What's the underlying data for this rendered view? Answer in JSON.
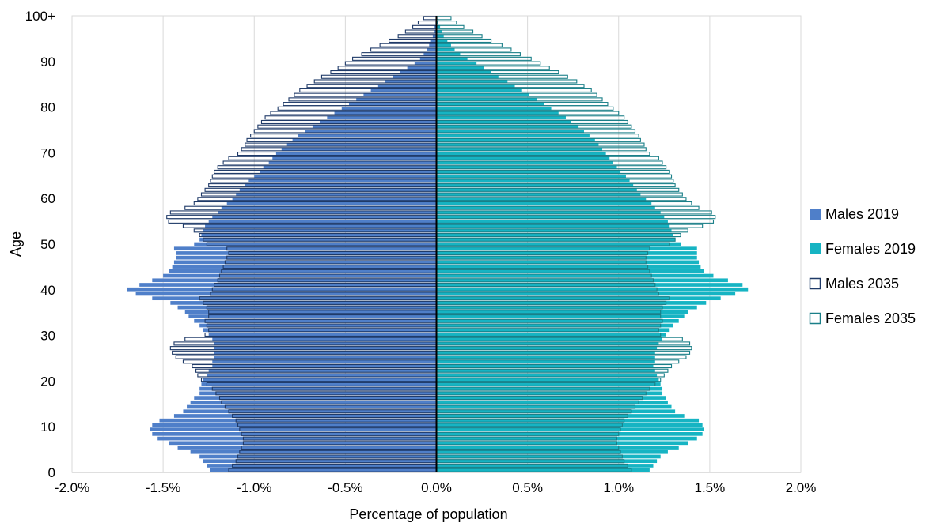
{
  "chart_data": {
    "type": "bar",
    "orientation": "horizontal-population-pyramid",
    "title": "",
    "xlabel": "Percentage of population",
    "ylabel": "Age",
    "xlim": [
      -2.0,
      2.0
    ],
    "ylim": [
      0,
      100
    ],
    "x_ticks": [
      -2.0,
      -1.5,
      -1.0,
      -0.5,
      0.0,
      0.5,
      1.0,
      1.5,
      2.0
    ],
    "x_tick_labels": [
      "-2.0%",
      "-1.5%",
      "-1.0%",
      "-0.5%",
      "0.0%",
      "0.5%",
      "1.0%",
      "1.5%",
      "2.0%"
    ],
    "y_ticks": [
      0,
      10,
      20,
      30,
      40,
      50,
      60,
      70,
      80,
      90,
      100
    ],
    "y_tick_labels": [
      "0",
      "10",
      "20",
      "30",
      "40",
      "50",
      "60",
      "70",
      "80",
      "90",
      "100+"
    ],
    "grid": "vertical",
    "legend_position": "right",
    "ages": [
      0,
      1,
      2,
      3,
      4,
      5,
      6,
      7,
      8,
      9,
      10,
      11,
      12,
      13,
      14,
      15,
      16,
      17,
      18,
      19,
      20,
      21,
      22,
      23,
      24,
      25,
      26,
      27,
      28,
      29,
      30,
      31,
      32,
      33,
      34,
      35,
      36,
      37,
      38,
      39,
      40,
      41,
      42,
      43,
      44,
      45,
      46,
      47,
      48,
      49,
      50,
      51,
      52,
      53,
      54,
      55,
      56,
      57,
      58,
      59,
      60,
      61,
      62,
      63,
      64,
      65,
      66,
      67,
      68,
      69,
      70,
      71,
      72,
      73,
      74,
      75,
      76,
      77,
      78,
      79,
      80,
      81,
      82,
      83,
      84,
      85,
      86,
      87,
      88,
      89,
      90,
      91,
      92,
      93,
      94,
      95,
      96,
      97,
      98,
      99,
      100
    ],
    "series": [
      {
        "name": "Males 2019",
        "style": "filled",
        "color": "#4F7FC9",
        "values": [
          -1.24,
          -1.26,
          -1.28,
          -1.3,
          -1.35,
          -1.42,
          -1.47,
          -1.53,
          -1.56,
          -1.57,
          -1.56,
          -1.52,
          -1.44,
          -1.39,
          -1.37,
          -1.35,
          -1.33,
          -1.3,
          -1.3,
          -1.29,
          -1.28,
          -1.26,
          -1.25,
          -1.23,
          -1.23,
          -1.22,
          -1.22,
          -1.22,
          -1.22,
          -1.23,
          -1.25,
          -1.28,
          -1.3,
          -1.33,
          -1.36,
          -1.38,
          -1.42,
          -1.46,
          -1.56,
          -1.65,
          -1.7,
          -1.63,
          -1.56,
          -1.5,
          -1.47,
          -1.45,
          -1.44,
          -1.43,
          -1.43,
          -1.44,
          -1.33,
          -1.3,
          -1.29,
          -1.28,
          -1.27,
          -1.25,
          -1.23,
          -1.2,
          -1.18,
          -1.15,
          -1.12,
          -1.1,
          -1.08,
          -1.05,
          -1.03,
          -1.0,
          -0.97,
          -0.95,
          -0.92,
          -0.9,
          -0.88,
          -0.85,
          -0.82,
          -0.79,
          -0.76,
          -0.72,
          -0.68,
          -0.64,
          -0.6,
          -0.56,
          -0.52,
          -0.48,
          -0.44,
          -0.4,
          -0.36,
          -0.32,
          -0.28,
          -0.24,
          -0.2,
          -0.16,
          -0.12,
          -0.09,
          -0.07,
          -0.05,
          -0.04,
          -0.03,
          -0.02,
          -0.01,
          -0.01,
          -0.005,
          -0.003
        ]
      },
      {
        "name": "Females 2019",
        "style": "filled",
        "color": "#16B4C3",
        "values": [
          1.17,
          1.19,
          1.21,
          1.23,
          1.27,
          1.33,
          1.38,
          1.43,
          1.46,
          1.47,
          1.46,
          1.44,
          1.36,
          1.31,
          1.29,
          1.27,
          1.26,
          1.24,
          1.24,
          1.23,
          1.22,
          1.21,
          1.2,
          1.19,
          1.2,
          1.2,
          1.2,
          1.21,
          1.22,
          1.24,
          1.26,
          1.28,
          1.3,
          1.33,
          1.36,
          1.38,
          1.43,
          1.48,
          1.56,
          1.64,
          1.71,
          1.68,
          1.6,
          1.52,
          1.47,
          1.45,
          1.44,
          1.43,
          1.43,
          1.43,
          1.34,
          1.31,
          1.3,
          1.29,
          1.28,
          1.27,
          1.25,
          1.23,
          1.2,
          1.18,
          1.15,
          1.12,
          1.1,
          1.08,
          1.06,
          1.04,
          1.01,
          0.99,
          0.97,
          0.95,
          0.93,
          0.91,
          0.89,
          0.87,
          0.84,
          0.81,
          0.78,
          0.74,
          0.71,
          0.67,
          0.63,
          0.59,
          0.55,
          0.51,
          0.47,
          0.43,
          0.39,
          0.34,
          0.3,
          0.26,
          0.22,
          0.17,
          0.13,
          0.1,
          0.08,
          0.06,
          0.04,
          0.03,
          0.02,
          0.01,
          0.005
        ]
      },
      {
        "name": "Males 2035",
        "style": "outline",
        "color": "#1F3A68",
        "values": [
          -1.14,
          -1.12,
          -1.1,
          -1.09,
          -1.08,
          -1.07,
          -1.06,
          -1.06,
          -1.07,
          -1.08,
          -1.09,
          -1.1,
          -1.12,
          -1.14,
          -1.16,
          -1.18,
          -1.19,
          -1.21,
          -1.23,
          -1.26,
          -1.29,
          -1.31,
          -1.32,
          -1.34,
          -1.39,
          -1.43,
          -1.45,
          -1.46,
          -1.44,
          -1.38,
          -1.27,
          -1.25,
          -1.26,
          -1.27,
          -1.25,
          -1.25,
          -1.26,
          -1.28,
          -1.3,
          -1.24,
          -1.23,
          -1.22,
          -1.2,
          -1.19,
          -1.18,
          -1.17,
          -1.16,
          -1.15,
          -1.14,
          -1.15,
          -1.26,
          -1.28,
          -1.3,
          -1.33,
          -1.39,
          -1.47,
          -1.48,
          -1.46,
          -1.38,
          -1.33,
          -1.31,
          -1.29,
          -1.27,
          -1.25,
          -1.24,
          -1.23,
          -1.22,
          -1.2,
          -1.17,
          -1.14,
          -1.09,
          -1.07,
          -1.05,
          -1.04,
          -1.02,
          -1.0,
          -0.98,
          -0.96,
          -0.94,
          -0.91,
          -0.87,
          -0.84,
          -0.81,
          -0.78,
          -0.75,
          -0.71,
          -0.67,
          -0.63,
          -0.58,
          -0.54,
          -0.5,
          -0.46,
          -0.41,
          -0.36,
          -0.31,
          -0.26,
          -0.21,
          -0.17,
          -0.13,
          -0.1,
          -0.07
        ]
      },
      {
        "name": "Females 2035",
        "style": "outline",
        "color": "#1A7F88",
        "values": [
          1.07,
          1.05,
          1.03,
          1.02,
          1.01,
          1.0,
          0.99,
          0.99,
          1.0,
          1.01,
          1.02,
          1.03,
          1.05,
          1.07,
          1.09,
          1.11,
          1.13,
          1.15,
          1.17,
          1.2,
          1.23,
          1.25,
          1.27,
          1.29,
          1.33,
          1.37,
          1.39,
          1.4,
          1.39,
          1.35,
          1.23,
          1.22,
          1.23,
          1.24,
          1.23,
          1.23,
          1.24,
          1.26,
          1.28,
          1.22,
          1.21,
          1.2,
          1.19,
          1.18,
          1.17,
          1.16,
          1.15,
          1.15,
          1.16,
          1.17,
          1.28,
          1.31,
          1.34,
          1.38,
          1.46,
          1.52,
          1.53,
          1.51,
          1.44,
          1.4,
          1.37,
          1.35,
          1.33,
          1.31,
          1.3,
          1.29,
          1.28,
          1.26,
          1.24,
          1.22,
          1.17,
          1.15,
          1.14,
          1.12,
          1.11,
          1.09,
          1.07,
          1.05,
          1.03,
          1.0,
          0.97,
          0.94,
          0.91,
          0.88,
          0.85,
          0.81,
          0.77,
          0.72,
          0.67,
          0.62,
          0.57,
          0.52,
          0.46,
          0.41,
          0.36,
          0.3,
          0.25,
          0.2,
          0.15,
          0.11,
          0.08
        ]
      }
    ]
  }
}
